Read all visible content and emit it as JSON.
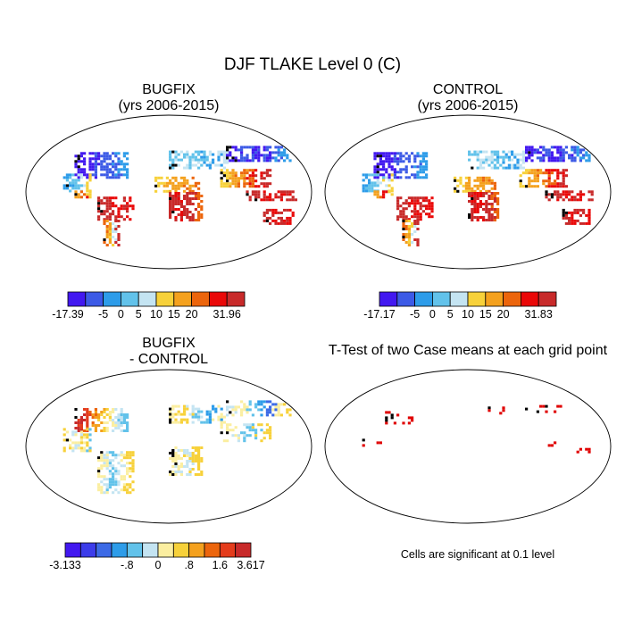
{
  "title": "DJF TLAKE Level 0 (C)",
  "panels": {
    "p1": {
      "line1": "BUGFIX",
      "line2": "(yrs 2006-2015)"
    },
    "p2": {
      "line1": "CONTROL",
      "line2": "(yrs 2006-2015)"
    },
    "p3": {
      "line1": "BUGFIX",
      "line2": "- CONTROL"
    },
    "p4": {
      "line1": "T-Test of two Case means at each grid point"
    }
  },
  "significance_note": "Cells are significant at 0.1 level",
  "chart_data": [
    {
      "type": "heatmap",
      "title": "BUGFIX (yrs 2006-2015)",
      "projection": "Robinson",
      "colorbar": {
        "colors": [
          "#4218f0",
          "#3c5ae6",
          "#2d9ce9",
          "#62c2ea",
          "#c4e4f2",
          "#f7d13a",
          "#f4a11e",
          "#ec650c",
          "#ea0808",
          "#c82a2a"
        ],
        "tick_labels": [
          "-17.39",
          "-5",
          "0",
          "5",
          "10",
          "15",
          "20",
          "31.96"
        ],
        "tick_boundary_index": [
          0,
          2,
          3,
          4,
          5,
          6,
          7,
          9
        ]
      }
    },
    {
      "type": "heatmap",
      "title": "CONTROL (yrs 2006-2015)",
      "projection": "Robinson",
      "colorbar": {
        "colors": [
          "#4218f0",
          "#3c5ae6",
          "#2d9ce9",
          "#62c2ea",
          "#c4e4f2",
          "#f7d13a",
          "#f4a11e",
          "#ec650c",
          "#ea0808",
          "#c82a2a"
        ],
        "tick_labels": [
          "-17.17",
          "-5",
          "0",
          "5",
          "10",
          "15",
          "20",
          "31.83"
        ],
        "tick_boundary_index": [
          0,
          2,
          3,
          4,
          5,
          6,
          7,
          9
        ]
      }
    },
    {
      "type": "heatmap",
      "title": "BUGFIX - CONTROL",
      "projection": "Robinson",
      "colorbar": {
        "colors": [
          "#4218f0",
          "#3c3cea",
          "#3c6ae6",
          "#2d9ce9",
          "#62c2ea",
          "#c4e4f2",
          "#fbeea0",
          "#f7d13a",
          "#f4a11e",
          "#ec650c",
          "#e43c1c",
          "#c82a2a"
        ],
        "tick_labels": [
          "-3.133",
          "-.8",
          "0",
          ".8",
          "1.6",
          "3.617"
        ],
        "tick_boundary_index": [
          0,
          4,
          6,
          8,
          10,
          12
        ]
      }
    },
    {
      "type": "heatmap",
      "title": "T-Test of two Case means at each grid point",
      "projection": "Robinson",
      "note": "Cells are significant at 0.1 level",
      "significant_color": "#e00000"
    }
  ]
}
